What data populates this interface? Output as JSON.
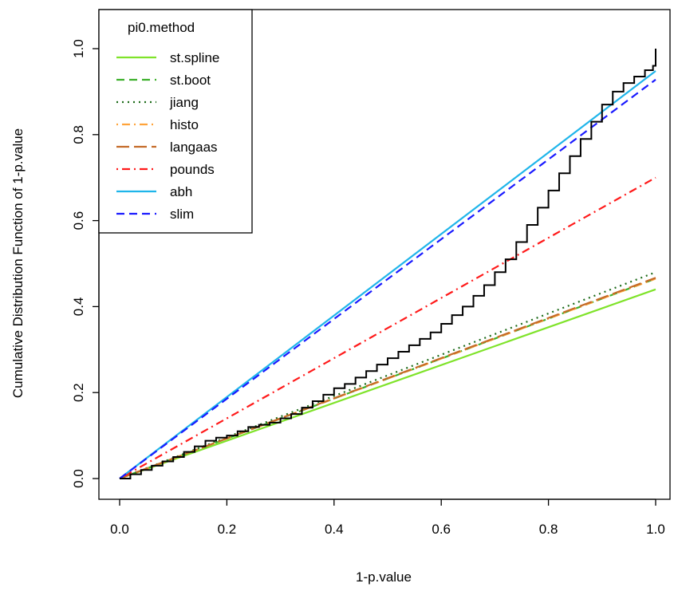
{
  "chart_data": {
    "type": "line",
    "title": "",
    "xlabel": "1-p.value",
    "ylabel": "Cumulative Distribution Function of 1-p.value",
    "xlim": [
      0,
      1
    ],
    "ylim": [
      0,
      1
    ],
    "x_ticks": [
      "0.0",
      "0.2",
      "0.4",
      "0.6",
      "0.8",
      "1.0"
    ],
    "y_ticks": [
      "0.0",
      "0.2",
      "0.4",
      "0.6",
      "0.8",
      "1.0"
    ],
    "grid": false,
    "legend": {
      "title": "pi0.method",
      "position": "top-left"
    },
    "series": [
      {
        "name": "st.spline",
        "color": "#7fe32a",
        "dash": "solid",
        "x": [
          0,
          1
        ],
        "y": [
          0,
          0.44
        ]
      },
      {
        "name": "st.boot",
        "color": "#3cb02a",
        "dash": "dashed",
        "x": [
          0,
          1
        ],
        "y": [
          0,
          0.465
        ]
      },
      {
        "name": "jiang",
        "color": "#1d6b19",
        "dash": "dotted",
        "x": [
          0,
          1
        ],
        "y": [
          0,
          0.48
        ]
      },
      {
        "name": "histo",
        "color": "#ffa33a",
        "dash": "dotdash",
        "x": [
          0,
          1
        ],
        "y": [
          0,
          0.465
        ]
      },
      {
        "name": "langaas",
        "color": "#c46a28",
        "dash": "longdash",
        "x": [
          0,
          1
        ],
        "y": [
          0,
          0.467
        ]
      },
      {
        "name": "pounds",
        "color": "#ff1a1a",
        "dash": "dotdash",
        "x": [
          0,
          1
        ],
        "y": [
          0,
          0.7
        ]
      },
      {
        "name": "abh",
        "color": "#1fb5ea",
        "dash": "solid",
        "x": [
          0,
          1
        ],
        "y": [
          0,
          0.948
        ]
      },
      {
        "name": "slim",
        "color": "#1a1aff",
        "dash": "dashed",
        "x": [
          0,
          1
        ],
        "y": [
          0,
          0.928
        ]
      }
    ],
    "empirical_cdf": {
      "color": "#000000",
      "x": [
        0,
        0.02,
        0.04,
        0.06,
        0.08,
        0.1,
        0.12,
        0.14,
        0.16,
        0.18,
        0.2,
        0.22,
        0.24,
        0.26,
        0.28,
        0.3,
        0.32,
        0.34,
        0.36,
        0.38,
        0.4,
        0.42,
        0.44,
        0.46,
        0.48,
        0.5,
        0.52,
        0.54,
        0.56,
        0.58,
        0.6,
        0.62,
        0.64,
        0.66,
        0.68,
        0.7,
        0.72,
        0.74,
        0.76,
        0.78,
        0.8,
        0.82,
        0.84,
        0.86,
        0.88,
        0.9,
        0.92,
        0.94,
        0.96,
        0.98,
        0.995,
        1.0,
        1.0
      ],
      "y": [
        0,
        0.01,
        0.02,
        0.03,
        0.04,
        0.05,
        0.062,
        0.075,
        0.088,
        0.095,
        0.1,
        0.11,
        0.12,
        0.125,
        0.13,
        0.14,
        0.15,
        0.165,
        0.18,
        0.195,
        0.21,
        0.22,
        0.235,
        0.25,
        0.265,
        0.28,
        0.295,
        0.31,
        0.325,
        0.34,
        0.36,
        0.38,
        0.4,
        0.425,
        0.45,
        0.48,
        0.51,
        0.55,
        0.59,
        0.63,
        0.67,
        0.71,
        0.75,
        0.79,
        0.83,
        0.87,
        0.9,
        0.92,
        0.935,
        0.95,
        0.96,
        0.98,
        1.0
      ]
    }
  }
}
